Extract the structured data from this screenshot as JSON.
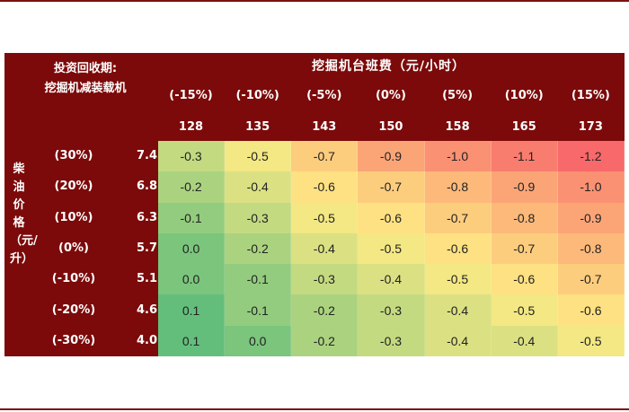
{
  "corner": {
    "line1": "投资回收期:",
    "line2": "挖掘机减装载机"
  },
  "cost_title": "挖掘机台班费（元/小时）",
  "diesel_axis_label": "柴油价格（元/升）",
  "chart_data": {
    "type": "heatmap",
    "title": "",
    "x_title": "挖掘机台班费（元/小时）",
    "y_title": "柴油价格（元/升）",
    "columns": [
      {
        "pct": "(-15%)",
        "value": "128"
      },
      {
        "pct": "(-10%)",
        "value": "135"
      },
      {
        "pct": "(-5%)",
        "value": "143"
      },
      {
        "pct": "(0%)",
        "value": "150"
      },
      {
        "pct": "(5%)",
        "value": "158"
      },
      {
        "pct": "(10%)",
        "value": "165"
      },
      {
        "pct": "(15%)",
        "value": "173"
      }
    ],
    "rows": [
      {
        "pct": "(30%)",
        "value": "7.4"
      },
      {
        "pct": "(20%)",
        "value": "6.8"
      },
      {
        "pct": "(10%)",
        "value": "6.3"
      },
      {
        "pct": "(0%)",
        "value": "5.7"
      },
      {
        "pct": "(-10%)",
        "value": "5.1"
      },
      {
        "pct": "(-20%)",
        "value": "4.6"
      },
      {
        "pct": "(-30%)",
        "value": "4.0"
      }
    ],
    "values": [
      [
        "-0.3",
        "-0.5",
        "-0.7",
        "-0.9",
        "-1.0",
        "-1.1",
        "-1.2"
      ],
      [
        "-0.2",
        "-0.4",
        "-0.6",
        "-0.7",
        "-0.8",
        "-0.9",
        "-1.0"
      ],
      [
        "-0.1",
        "-0.3",
        "-0.5",
        "-0.6",
        "-0.7",
        "-0.8",
        "-0.9"
      ],
      [
        "0.0",
        "-0.2",
        "-0.4",
        "-0.5",
        "-0.6",
        "-0.7",
        "-0.8"
      ],
      [
        "0.0",
        "-0.1",
        "-0.3",
        "-0.4",
        "-0.5",
        "-0.6",
        "-0.7"
      ],
      [
        "0.1",
        "-0.1",
        "-0.2",
        "-0.3",
        "-0.4",
        "-0.5",
        "-0.6"
      ],
      [
        "0.1",
        "0.0",
        "-0.2",
        "-0.3",
        "-0.4",
        "-0.4",
        "-0.5"
      ]
    ],
    "color_scale": {
      "low_color": "#f8696b",
      "mid_color": "#ffeb84",
      "high_color": "#63be7b",
      "min": -1.2,
      "max": 0.1
    }
  }
}
